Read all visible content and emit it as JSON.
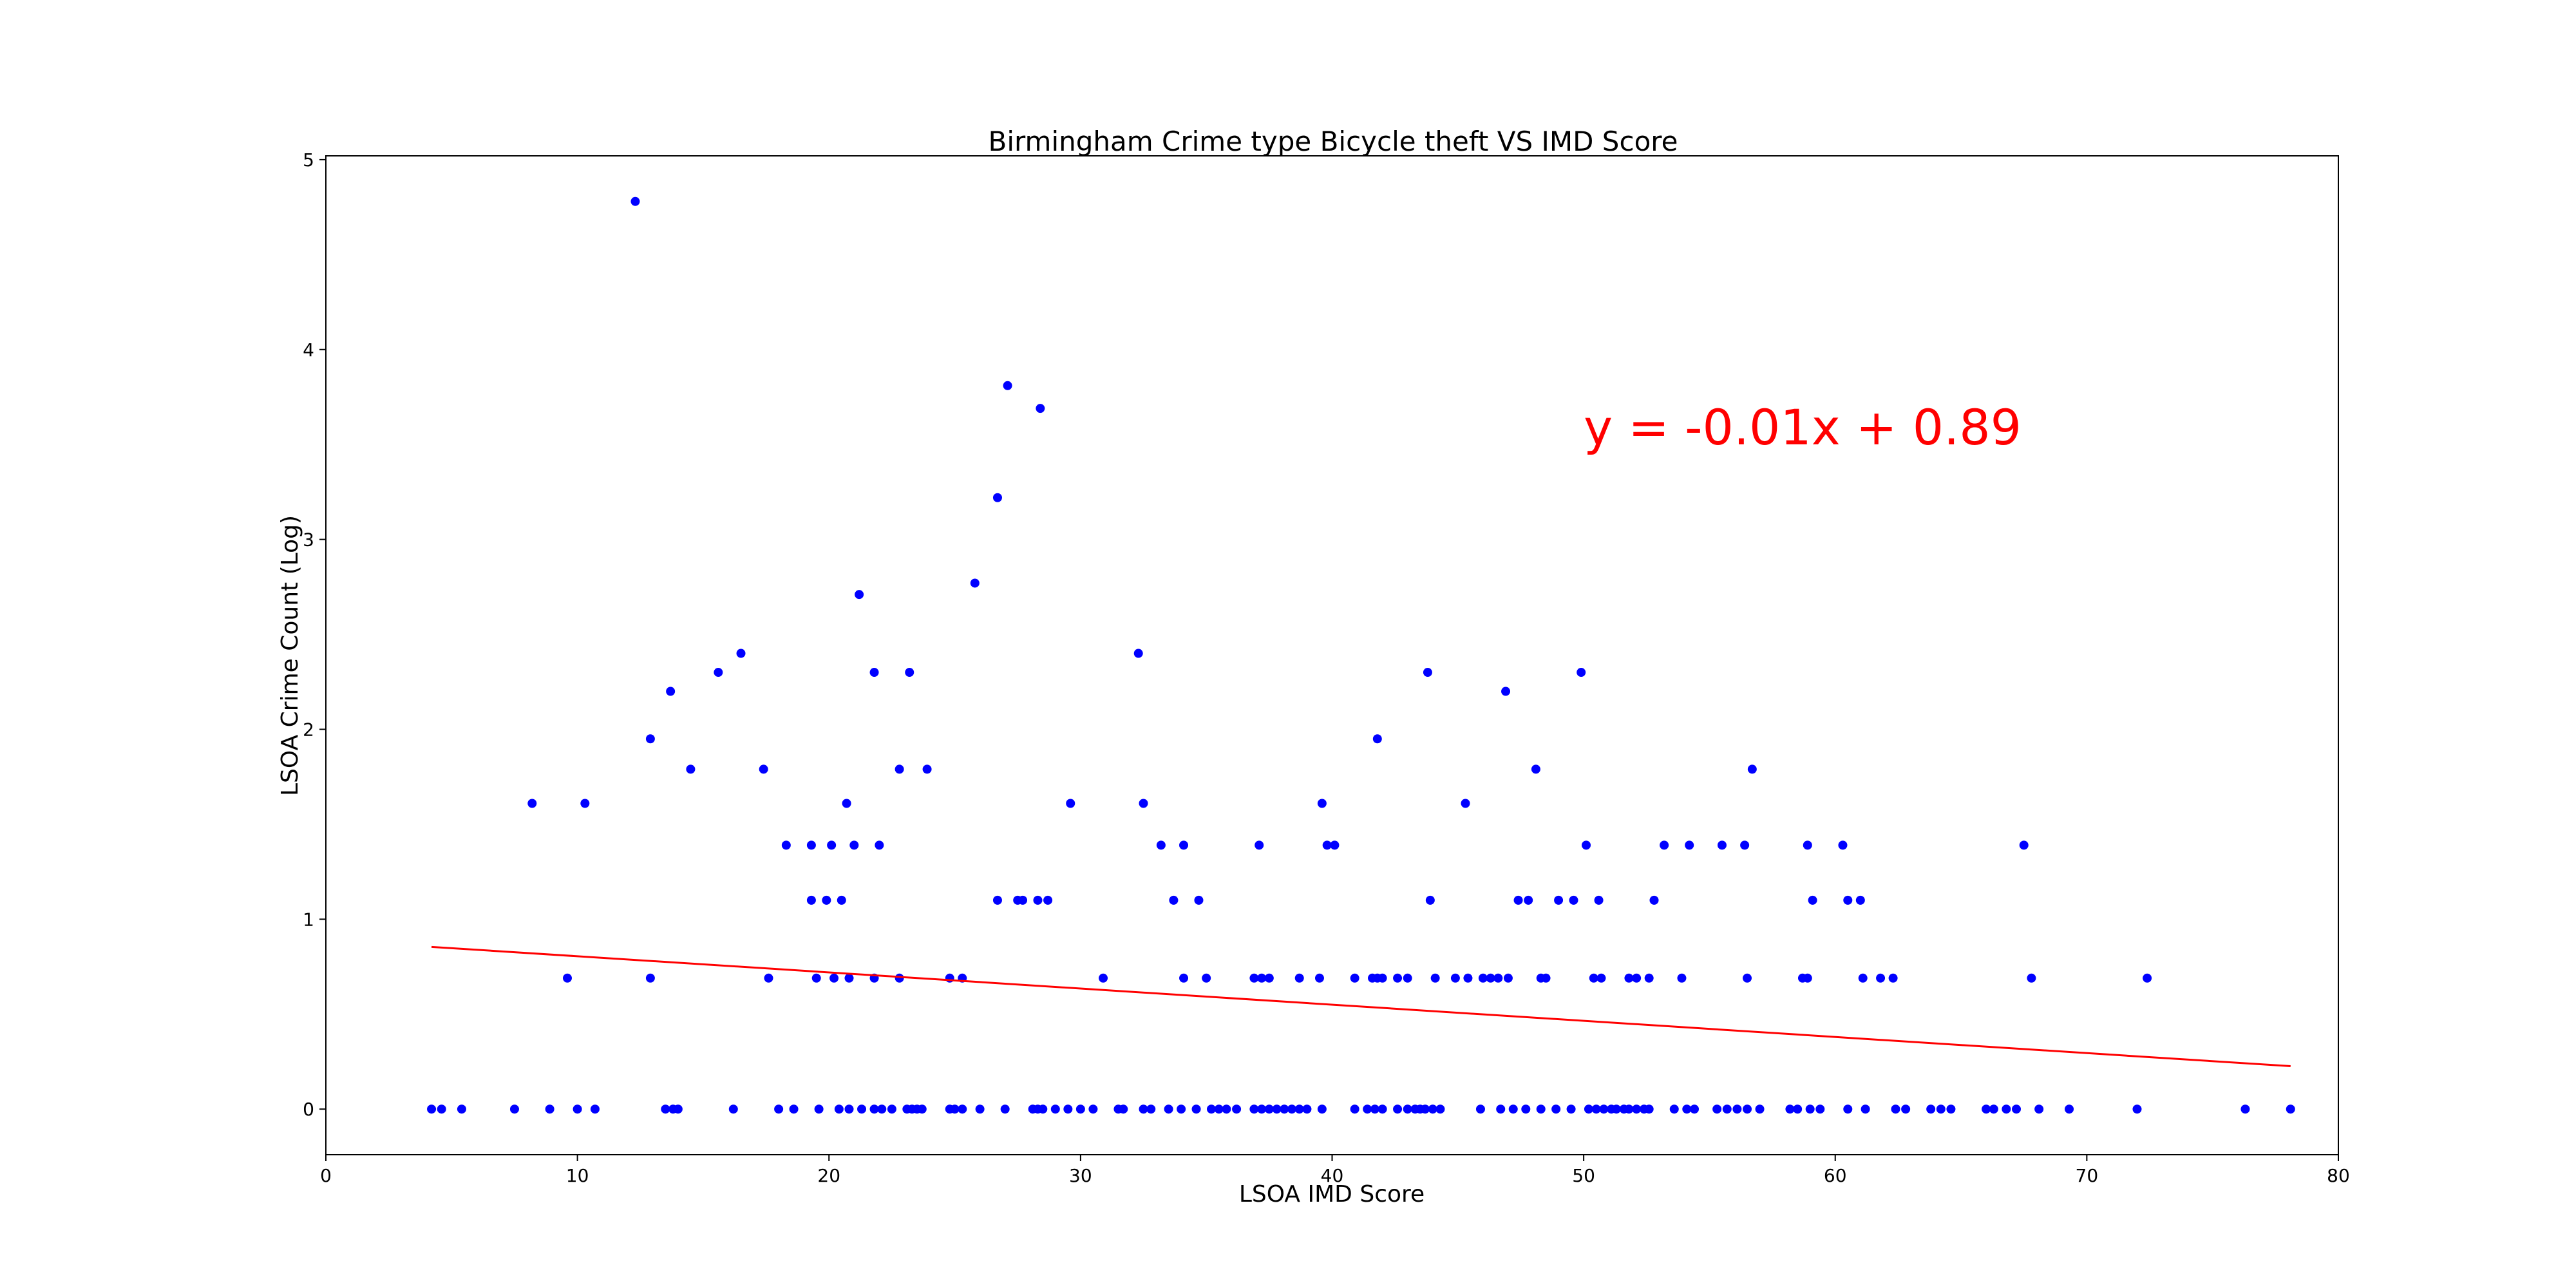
{
  "chart_data": {
    "type": "scatter",
    "title": "Birmingham Crime type Bicycle theft VS IMD Score",
    "xlabel": "LSOA IMD Score",
    "ylabel": "LSOA Crime Count (Log)",
    "xlim": [
      0,
      80
    ],
    "ylim": [
      -0.24,
      5.02
    ],
    "xticks": [
      0,
      10,
      20,
      30,
      40,
      50,
      60,
      70,
      80
    ],
    "yticks": [
      0,
      1,
      2,
      3,
      4,
      5
    ],
    "grid": false,
    "point_color": "#0000ff",
    "trend_color": "#ff0000",
    "trendline": {
      "slope": -0.0085,
      "intercept": 0.89,
      "x_range": [
        4.2,
        78.1
      ]
    },
    "annotation": {
      "text": "y = -0.01x + 0.89",
      "x": 50,
      "y": 3.5
    },
    "points": [
      [
        4.2,
        0
      ],
      [
        4.6,
        0
      ],
      [
        5.4,
        0
      ],
      [
        7.5,
        0
      ],
      [
        8.9,
        0
      ],
      [
        10.0,
        0
      ],
      [
        10.7,
        0
      ],
      [
        13.5,
        0
      ],
      [
        13.8,
        0
      ],
      [
        14.0,
        0
      ],
      [
        16.2,
        0
      ],
      [
        18.0,
        0
      ],
      [
        18.6,
        0
      ],
      [
        19.6,
        0
      ],
      [
        20.4,
        0
      ],
      [
        20.8,
        0
      ],
      [
        21.3,
        0
      ],
      [
        21.8,
        0
      ],
      [
        22.1,
        0
      ],
      [
        22.5,
        0
      ],
      [
        23.1,
        0
      ],
      [
        23.3,
        0
      ],
      [
        23.5,
        0
      ],
      [
        23.7,
        0
      ],
      [
        24.8,
        0
      ],
      [
        25.0,
        0
      ],
      [
        25.3,
        0
      ],
      [
        26.0,
        0
      ],
      [
        27.0,
        0
      ],
      [
        28.1,
        0
      ],
      [
        28.3,
        0
      ],
      [
        28.5,
        0
      ],
      [
        29.0,
        0
      ],
      [
        29.5,
        0
      ],
      [
        30.0,
        0
      ],
      [
        30.5,
        0
      ],
      [
        31.5,
        0
      ],
      [
        31.7,
        0
      ],
      [
        32.5,
        0
      ],
      [
        32.8,
        0
      ],
      [
        33.5,
        0
      ],
      [
        34.0,
        0
      ],
      [
        34.6,
        0
      ],
      [
        35.2,
        0
      ],
      [
        35.5,
        0
      ],
      [
        35.8,
        0
      ],
      [
        36.2,
        0
      ],
      [
        36.9,
        0
      ],
      [
        37.2,
        0
      ],
      [
        37.5,
        0
      ],
      [
        37.8,
        0
      ],
      [
        38.1,
        0
      ],
      [
        38.4,
        0
      ],
      [
        38.7,
        0
      ],
      [
        39.0,
        0
      ],
      [
        39.6,
        0
      ],
      [
        40.9,
        0
      ],
      [
        41.4,
        0
      ],
      [
        41.7,
        0
      ],
      [
        42.0,
        0
      ],
      [
        42.6,
        0
      ],
      [
        43.0,
        0
      ],
      [
        43.3,
        0
      ],
      [
        43.5,
        0
      ],
      [
        43.7,
        0
      ],
      [
        44.0,
        0
      ],
      [
        44.3,
        0
      ],
      [
        45.9,
        0
      ],
      [
        46.7,
        0
      ],
      [
        47.2,
        0
      ],
      [
        47.7,
        0
      ],
      [
        48.3,
        0
      ],
      [
        48.9,
        0
      ],
      [
        49.5,
        0
      ],
      [
        50.2,
        0
      ],
      [
        50.5,
        0
      ],
      [
        50.8,
        0
      ],
      [
        51.1,
        0
      ],
      [
        51.3,
        0
      ],
      [
        51.6,
        0
      ],
      [
        51.8,
        0
      ],
      [
        52.1,
        0
      ],
      [
        52.4,
        0
      ],
      [
        52.6,
        0
      ],
      [
        53.6,
        0
      ],
      [
        54.1,
        0
      ],
      [
        54.4,
        0
      ],
      [
        55.3,
        0
      ],
      [
        55.7,
        0
      ],
      [
        56.1,
        0
      ],
      [
        56.5,
        0
      ],
      [
        57.0,
        0
      ],
      [
        58.2,
        0
      ],
      [
        58.5,
        0
      ],
      [
        59.0,
        0
      ],
      [
        59.4,
        0
      ],
      [
        60.5,
        0
      ],
      [
        61.2,
        0
      ],
      [
        62.4,
        0
      ],
      [
        62.8,
        0
      ],
      [
        63.8,
        0
      ],
      [
        64.2,
        0
      ],
      [
        64.6,
        0
      ],
      [
        66.0,
        0
      ],
      [
        66.3,
        0
      ],
      [
        66.8,
        0
      ],
      [
        67.2,
        0
      ],
      [
        68.1,
        0
      ],
      [
        69.3,
        0
      ],
      [
        72.0,
        0
      ],
      [
        76.3,
        0
      ],
      [
        78.1,
        0
      ],
      [
        9.6,
        0.69
      ],
      [
        12.9,
        0.69
      ],
      [
        17.6,
        0.69
      ],
      [
        19.5,
        0.69
      ],
      [
        20.2,
        0.69
      ],
      [
        20.8,
        0.69
      ],
      [
        21.8,
        0.69
      ],
      [
        22.8,
        0.69
      ],
      [
        24.8,
        0.69
      ],
      [
        25.3,
        0.69
      ],
      [
        30.9,
        0.69
      ],
      [
        34.1,
        0.69
      ],
      [
        35.0,
        0.69
      ],
      [
        36.9,
        0.69
      ],
      [
        37.2,
        0.69
      ],
      [
        37.5,
        0.69
      ],
      [
        38.7,
        0.69
      ],
      [
        39.5,
        0.69
      ],
      [
        40.9,
        0.69
      ],
      [
        41.6,
        0.69
      ],
      [
        41.8,
        0.69
      ],
      [
        42.0,
        0.69
      ],
      [
        42.6,
        0.69
      ],
      [
        43.0,
        0.69
      ],
      [
        44.1,
        0.69
      ],
      [
        44.9,
        0.69
      ],
      [
        45.4,
        0.69
      ],
      [
        46.0,
        0.69
      ],
      [
        46.3,
        0.69
      ],
      [
        46.6,
        0.69
      ],
      [
        47.0,
        0.69
      ],
      [
        48.3,
        0.69
      ],
      [
        48.5,
        0.69
      ],
      [
        50.4,
        0.69
      ],
      [
        50.7,
        0.69
      ],
      [
        51.8,
        0.69
      ],
      [
        52.1,
        0.69
      ],
      [
        52.6,
        0.69
      ],
      [
        53.9,
        0.69
      ],
      [
        56.5,
        0.69
      ],
      [
        58.7,
        0.69
      ],
      [
        58.9,
        0.69
      ],
      [
        61.1,
        0.69
      ],
      [
        61.8,
        0.69
      ],
      [
        62.3,
        0.69
      ],
      [
        67.8,
        0.69
      ],
      [
        72.4,
        0.69
      ],
      [
        19.3,
        1.1
      ],
      [
        19.9,
        1.1
      ],
      [
        20.5,
        1.1
      ],
      [
        26.7,
        1.1
      ],
      [
        27.5,
        1.1
      ],
      [
        27.7,
        1.1
      ],
      [
        28.3,
        1.1
      ],
      [
        28.7,
        1.1
      ],
      [
        33.7,
        1.1
      ],
      [
        34.7,
        1.1
      ],
      [
        43.9,
        1.1
      ],
      [
        47.4,
        1.1
      ],
      [
        47.8,
        1.1
      ],
      [
        49.0,
        1.1
      ],
      [
        49.6,
        1.1
      ],
      [
        50.6,
        1.1
      ],
      [
        52.8,
        1.1
      ],
      [
        59.1,
        1.1
      ],
      [
        60.5,
        1.1
      ],
      [
        61.0,
        1.1
      ],
      [
        8.2,
        1.61
      ],
      [
        10.3,
        1.61
      ],
      [
        20.7,
        1.61
      ],
      [
        29.6,
        1.61
      ],
      [
        32.5,
        1.61
      ],
      [
        39.6,
        1.61
      ],
      [
        45.3,
        1.61
      ],
      [
        18.3,
        1.39
      ],
      [
        19.3,
        1.39
      ],
      [
        20.1,
        1.39
      ],
      [
        21.0,
        1.39
      ],
      [
        22.0,
        1.39
      ],
      [
        33.2,
        1.39
      ],
      [
        34.1,
        1.39
      ],
      [
        37.1,
        1.39
      ],
      [
        39.8,
        1.39
      ],
      [
        40.1,
        1.39
      ],
      [
        50.1,
        1.39
      ],
      [
        53.2,
        1.39
      ],
      [
        54.2,
        1.39
      ],
      [
        55.5,
        1.39
      ],
      [
        56.4,
        1.39
      ],
      [
        58.9,
        1.39
      ],
      [
        60.3,
        1.39
      ],
      [
        67.5,
        1.39
      ],
      [
        14.5,
        1.79
      ],
      [
        17.4,
        1.79
      ],
      [
        22.8,
        1.79
      ],
      [
        23.9,
        1.79
      ],
      [
        48.1,
        1.79
      ],
      [
        56.7,
        1.79
      ],
      [
        12.9,
        1.95
      ],
      [
        41.8,
        1.95
      ],
      [
        13.7,
        2.2
      ],
      [
        46.9,
        2.2
      ],
      [
        15.6,
        2.3
      ],
      [
        21.8,
        2.3
      ],
      [
        23.2,
        2.3
      ],
      [
        43.8,
        2.3
      ],
      [
        49.9,
        2.3
      ],
      [
        16.5,
        2.4
      ],
      [
        32.3,
        2.4
      ],
      [
        21.2,
        2.71
      ],
      [
        25.8,
        2.77
      ],
      [
        26.7,
        3.22
      ],
      [
        28.4,
        3.69
      ],
      [
        27.1,
        3.81
      ],
      [
        12.3,
        4.78
      ]
    ]
  }
}
